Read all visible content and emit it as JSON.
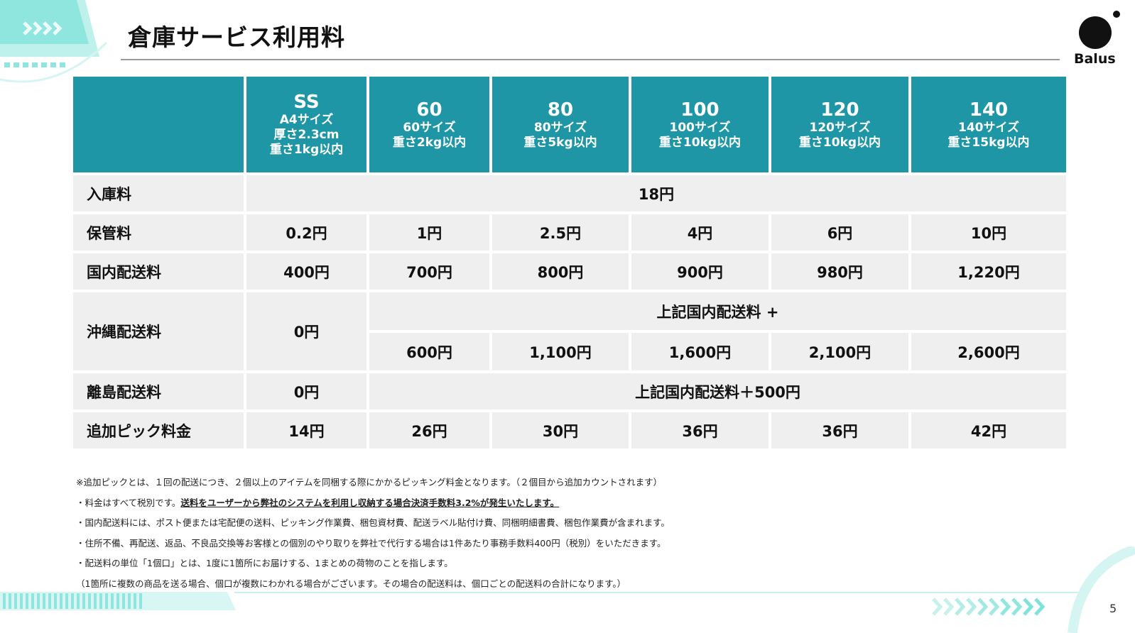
{
  "title": "倉庫サービス利用料",
  "logo": {
    "text": "Balus"
  },
  "page_number": "5",
  "table": {
    "headers": [
      {
        "size": "SS",
        "lines": [
          "A4サイズ",
          "厚さ2.3cm",
          "重さ1kg以内"
        ]
      },
      {
        "size": "60",
        "lines": [
          "60サイズ",
          "重さ2kg以内"
        ]
      },
      {
        "size": "80",
        "lines": [
          "80サイズ",
          "重さ5kg以内"
        ]
      },
      {
        "size": "100",
        "lines": [
          "100サイズ",
          "重さ10kg以内"
        ]
      },
      {
        "size": "120",
        "lines": [
          "120サイズ",
          "重さ10kg以内"
        ]
      },
      {
        "size": "140",
        "lines": [
          "140サイズ",
          "重さ15kg以内"
        ]
      }
    ],
    "rows": {
      "inbound": {
        "label": "入庫料",
        "value": "18円"
      },
      "storage": {
        "label": "保管料",
        "values": [
          "0.2円",
          "1円",
          "2.5円",
          "4円",
          "6円",
          "10円"
        ]
      },
      "domestic": {
        "label": "国内配送料",
        "values": [
          "400円",
          "700円",
          "800円",
          "900円",
          "980円",
          "1,220円"
        ]
      },
      "okinawa": {
        "label": "沖縄配送料",
        "ss": "0円",
        "note": "上記国内配送料 +",
        "values": [
          "600円",
          "1,100円",
          "1,600円",
          "2,100円",
          "2,600円"
        ]
      },
      "island": {
        "label": "離島配送料",
        "ss": "0円",
        "note": "上記国内配送料＋500円"
      },
      "pick": {
        "label": "追加ピック料金",
        "values": [
          "14円",
          "26円",
          "30円",
          "36円",
          "36円",
          "42円"
        ]
      }
    }
  },
  "notes": {
    "n1": "※追加ピックとは、１回の配送につき、２個以上のアイテムを同梱する際にかかるピッキング料金となります。（２個目から追加カウントされます）",
    "n2_prefix": "・料金はすべて税別です。",
    "n2_emphasis": "送料をユーザーから弊社のシステムを利用し収納する場合決済手数料3.2%が発生いたします。",
    "n3": "・国内配送料には、ポスト便または宅配便の送料、ピッキング作業費、梱包資材費、配送ラベル貼付け費、同梱明細書費、梱包作業費が含まれます。",
    "n4": "・住所不備、再配送、返品、不良品交換等お客様との個別のやり取りを弊社で代行する場合は1件あたり事務手数料400円（税別）をいただきます。",
    "n5": "・配送料の単位「1個口」とは、1度に1箇所にお届けする、1まとめの荷物のことを指します。",
    "n6": "（1箇所に複数の商品を送る場合、個口が複数にわかれる場合がございます。その場合の配送料は、個口ごとの配送料の合計になります。）"
  },
  "colors": {
    "header_bg": "#1f96a6",
    "cell_bg": "#efefef",
    "accent": "#7fe3dc"
  }
}
